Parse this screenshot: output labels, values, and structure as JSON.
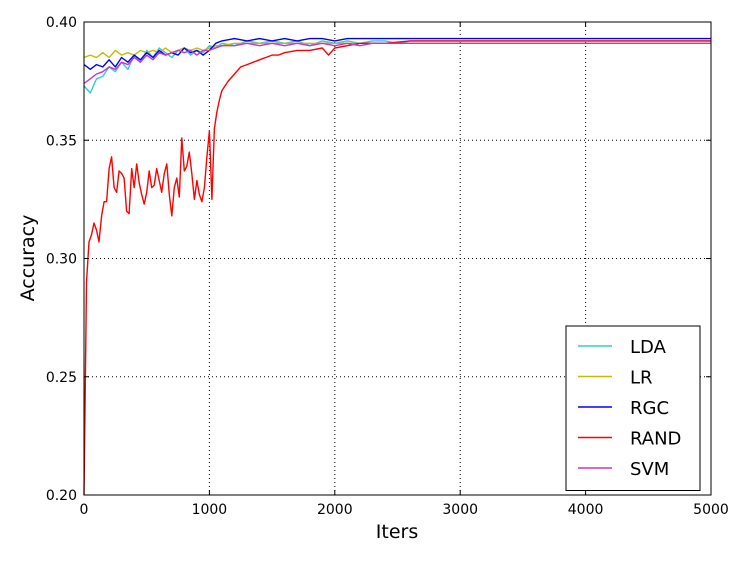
{
  "chart_data": {
    "type": "line",
    "title": "",
    "xlabel": "Iters",
    "ylabel": "Accuracy",
    "xlim": [
      0,
      5000
    ],
    "ylim": [
      0.2,
      0.4
    ],
    "xticks": [
      0,
      1000,
      2000,
      3000,
      4000,
      5000
    ],
    "xtick_labels": [
      "0",
      "1000",
      "2000",
      "3000",
      "4000",
      "5000"
    ],
    "yticks": [
      0.2,
      0.25,
      0.3,
      0.35,
      0.4
    ],
    "ytick_labels": [
      "0.20",
      "0.25",
      "0.30",
      "0.35",
      "0.40"
    ],
    "grid": true,
    "legend_position": "bottom-right",
    "series": [
      {
        "name": "LDA",
        "color": "#33cccc",
        "x": [
          0,
          50,
          100,
          150,
          200,
          250,
          300,
          350,
          400,
          450,
          500,
          550,
          600,
          650,
          700,
          750,
          800,
          850,
          900,
          950,
          1000,
          1050,
          1100,
          1200,
          1300,
          1400,
          1500,
          1600,
          1700,
          1800,
          1900,
          2000,
          2100,
          2200,
          2300,
          2400,
          2500,
          2600,
          2700,
          2800,
          2900,
          3000,
          3500,
          4000,
          4500,
          5000
        ],
        "y": [
          0.373,
          0.37,
          0.376,
          0.377,
          0.381,
          0.379,
          0.383,
          0.38,
          0.386,
          0.383,
          0.388,
          0.385,
          0.389,
          0.387,
          0.385,
          0.388,
          0.389,
          0.386,
          0.388,
          0.387,
          0.39,
          0.389,
          0.391,
          0.39,
          0.392,
          0.391,
          0.392,
          0.391,
          0.392,
          0.39,
          0.392,
          0.391,
          0.392,
          0.391,
          0.392,
          0.392,
          0.391,
          0.392,
          0.392,
          0.392,
          0.392,
          0.392,
          0.392,
          0.392,
          0.392,
          0.392
        ]
      },
      {
        "name": "LR",
        "color": "#bfbf00",
        "x": [
          0,
          50,
          100,
          150,
          200,
          250,
          300,
          350,
          400,
          450,
          500,
          550,
          600,
          650,
          700,
          750,
          800,
          850,
          900,
          950,
          1000,
          1050,
          1100,
          1200,
          1300,
          1400,
          1500,
          1600,
          1700,
          1800,
          1900,
          2000,
          2100,
          2200,
          2300,
          2400,
          2500,
          2600,
          2700,
          2800,
          2900,
          3000,
          3500,
          4000,
          4500,
          5000
        ],
        "y": [
          0.385,
          0.386,
          0.385,
          0.387,
          0.385,
          0.388,
          0.386,
          0.387,
          0.386,
          0.388,
          0.387,
          0.388,
          0.387,
          0.389,
          0.387,
          0.388,
          0.389,
          0.388,
          0.389,
          0.388,
          0.389,
          0.39,
          0.39,
          0.391,
          0.391,
          0.391,
          0.391,
          0.391,
          0.391,
          0.391,
          0.391,
          0.391,
          0.391,
          0.391,
          0.391,
          0.391,
          0.391,
          0.391,
          0.391,
          0.391,
          0.391,
          0.391,
          0.391,
          0.391,
          0.391,
          0.391
        ]
      },
      {
        "name": "RGC",
        "color": "#0000ff",
        "x": [
          0,
          50,
          100,
          150,
          200,
          250,
          300,
          350,
          400,
          450,
          500,
          550,
          600,
          650,
          700,
          750,
          800,
          850,
          900,
          950,
          1000,
          1050,
          1100,
          1200,
          1300,
          1400,
          1500,
          1600,
          1700,
          1800,
          1900,
          2000,
          2100,
          2200,
          2300,
          2400,
          2500,
          2600,
          2700,
          2800,
          2900,
          3000,
          3500,
          4000,
          4500,
          5000
        ],
        "y": [
          0.382,
          0.38,
          0.382,
          0.381,
          0.384,
          0.381,
          0.385,
          0.383,
          0.386,
          0.384,
          0.387,
          0.385,
          0.388,
          0.386,
          0.387,
          0.386,
          0.389,
          0.387,
          0.388,
          0.386,
          0.388,
          0.391,
          0.392,
          0.393,
          0.392,
          0.393,
          0.392,
          0.393,
          0.392,
          0.393,
          0.393,
          0.392,
          0.393,
          0.393,
          0.393,
          0.393,
          0.393,
          0.393,
          0.393,
          0.393,
          0.393,
          0.393,
          0.393,
          0.393,
          0.393,
          0.393
        ]
      },
      {
        "name": "RAND",
        "color": "#ff0000",
        "x": [
          0,
          20,
          40,
          60,
          80,
          100,
          120,
          140,
          160,
          180,
          200,
          220,
          240,
          260,
          280,
          300,
          320,
          340,
          360,
          380,
          400,
          420,
          440,
          460,
          480,
          500,
          520,
          540,
          560,
          580,
          600,
          620,
          640,
          660,
          680,
          700,
          720,
          740,
          760,
          780,
          800,
          820,
          840,
          860,
          880,
          900,
          920,
          940,
          960,
          980,
          1000,
          1020,
          1040,
          1060,
          1080,
          1100,
          1150,
          1200,
          1250,
          1300,
          1350,
          1400,
          1450,
          1500,
          1550,
          1600,
          1700,
          1800,
          1900,
          1950,
          2000,
          2100,
          2200,
          2300,
          2400,
          2600,
          2800,
          3000,
          3500,
          4000,
          4500,
          5000
        ],
        "y": [
          0.2,
          0.29,
          0.307,
          0.31,
          0.315,
          0.312,
          0.307,
          0.318,
          0.324,
          0.324,
          0.338,
          0.343,
          0.33,
          0.328,
          0.337,
          0.336,
          0.334,
          0.32,
          0.319,
          0.338,
          0.33,
          0.34,
          0.332,
          0.327,
          0.323,
          0.328,
          0.337,
          0.33,
          0.331,
          0.338,
          0.333,
          0.328,
          0.336,
          0.34,
          0.327,
          0.318,
          0.33,
          0.334,
          0.326,
          0.351,
          0.337,
          0.339,
          0.345,
          0.336,
          0.325,
          0.333,
          0.327,
          0.324,
          0.33,
          0.343,
          0.354,
          0.325,
          0.355,
          0.362,
          0.367,
          0.371,
          0.375,
          0.378,
          0.381,
          0.382,
          0.383,
          0.384,
          0.385,
          0.386,
          0.386,
          0.387,
          0.388,
          0.388,
          0.389,
          0.386,
          0.389,
          0.39,
          0.391,
          0.391,
          0.391,
          0.392,
          0.392,
          0.392,
          0.392,
          0.392,
          0.392,
          0.392
        ]
      },
      {
        "name": "SVM",
        "color": "#cc33cc",
        "x": [
          0,
          50,
          100,
          150,
          200,
          250,
          300,
          350,
          400,
          450,
          500,
          550,
          600,
          650,
          700,
          750,
          800,
          850,
          900,
          950,
          1000,
          1050,
          1100,
          1200,
          1300,
          1400,
          1500,
          1600,
          1700,
          1800,
          1900,
          2000,
          2100,
          2200,
          2300,
          2400,
          2500,
          2600,
          2700,
          2800,
          2900,
          3000,
          3500,
          4000,
          4500,
          5000
        ],
        "y": [
          0.374,
          0.376,
          0.378,
          0.379,
          0.381,
          0.38,
          0.383,
          0.382,
          0.385,
          0.383,
          0.386,
          0.384,
          0.387,
          0.386,
          0.387,
          0.388,
          0.387,
          0.388,
          0.386,
          0.388,
          0.388,
          0.389,
          0.39,
          0.39,
          0.391,
          0.39,
          0.391,
          0.39,
          0.391,
          0.39,
          0.391,
          0.39,
          0.391,
          0.39,
          0.391,
          0.391,
          0.391,
          0.391,
          0.391,
          0.391,
          0.391,
          0.391,
          0.391,
          0.391,
          0.391,
          0.391
        ]
      }
    ]
  }
}
